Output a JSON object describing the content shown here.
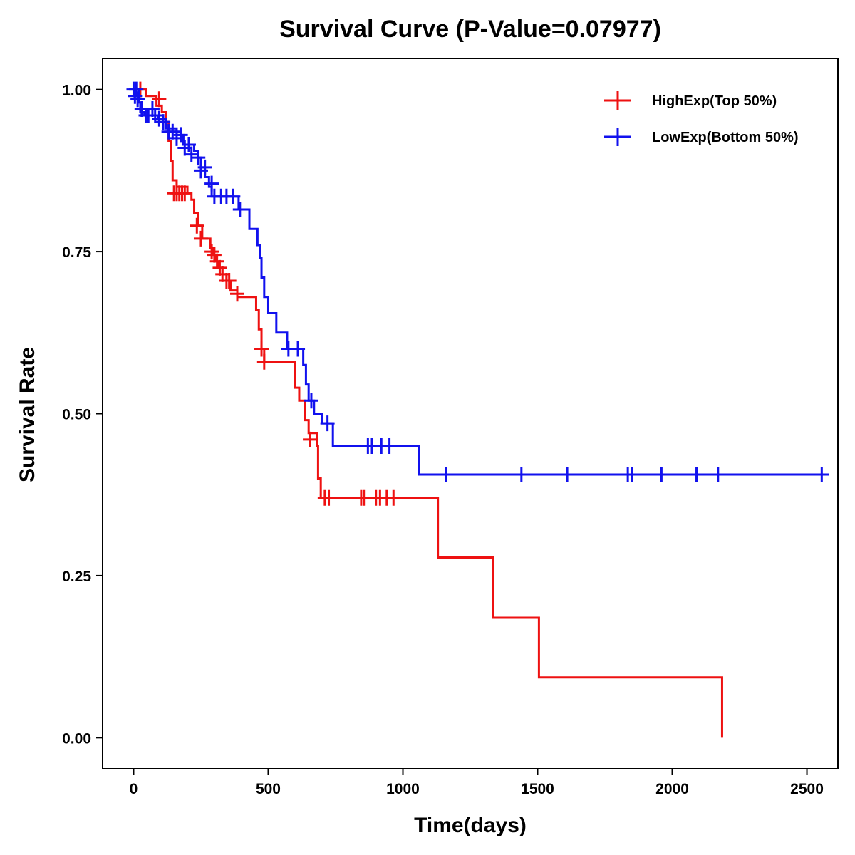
{
  "chart_data": {
    "type": "line",
    "subtype": "kaplan-meier-step",
    "title": "Survival Curve (P-Value=0.07977)",
    "xlabel": "Time(days)",
    "ylabel": "Survival Rate",
    "xlim": [
      -115,
      2615
    ],
    "ylim": [
      -0.048,
      1.048
    ],
    "xticks": [
      0,
      500,
      1000,
      1500,
      2000,
      2500
    ],
    "xtick_labels": [
      "0",
      "500",
      "1000",
      "1500",
      "2000",
      "2500"
    ],
    "yticks": [
      0.0,
      0.25,
      0.5,
      0.75,
      1.0
    ],
    "ytick_labels": [
      "0.00",
      "0.25",
      "0.50",
      "0.75",
      "1.00"
    ],
    "grid": false,
    "legend_position": "top-right",
    "series": [
      {
        "name": "HighExp(Top 50%)",
        "color": "#ee1111",
        "steps": [
          [
            0,
            1.0
          ],
          [
            45,
            0.99
          ],
          [
            85,
            0.975
          ],
          [
            105,
            0.965
          ],
          [
            120,
            0.95
          ],
          [
            130,
            0.92
          ],
          [
            140,
            0.89
          ],
          [
            145,
            0.86
          ],
          [
            160,
            0.85
          ],
          [
            200,
            0.84
          ],
          [
            215,
            0.83
          ],
          [
            225,
            0.81
          ],
          [
            240,
            0.79
          ],
          [
            255,
            0.77
          ],
          [
            285,
            0.755
          ],
          [
            295,
            0.745
          ],
          [
            305,
            0.735
          ],
          [
            315,
            0.725
          ],
          [
            330,
            0.715
          ],
          [
            345,
            0.705
          ],
          [
            360,
            0.69
          ],
          [
            385,
            0.68
          ],
          [
            455,
            0.66
          ],
          [
            465,
            0.63
          ],
          [
            475,
            0.6
          ],
          [
            485,
            0.58
          ],
          [
            600,
            0.54
          ],
          [
            615,
            0.52
          ],
          [
            635,
            0.49
          ],
          [
            650,
            0.47
          ],
          [
            680,
            0.45
          ],
          [
            685,
            0.4
          ],
          [
            695,
            0.37
          ],
          [
            1130,
            0.278
          ],
          [
            1335,
            0.185
          ],
          [
            1505,
            0.093
          ],
          [
            2185,
            0.0
          ]
        ],
        "end": 2185,
        "censored": [
          [
            25,
            1.0
          ],
          [
            95,
            0.985
          ],
          [
            150,
            0.84
          ],
          [
            160,
            0.84
          ],
          [
            170,
            0.84
          ],
          [
            180,
            0.84
          ],
          [
            190,
            0.84
          ],
          [
            235,
            0.79
          ],
          [
            250,
            0.77
          ],
          [
            290,
            0.75
          ],
          [
            300,
            0.745
          ],
          [
            310,
            0.735
          ],
          [
            320,
            0.725
          ],
          [
            330,
            0.715
          ],
          [
            345,
            0.705
          ],
          [
            355,
            0.705
          ],
          [
            385,
            0.685
          ],
          [
            475,
            0.6
          ],
          [
            485,
            0.58
          ],
          [
            655,
            0.46
          ],
          [
            710,
            0.37
          ],
          [
            725,
            0.37
          ],
          [
            845,
            0.37
          ],
          [
            855,
            0.37
          ],
          [
            900,
            0.37
          ],
          [
            915,
            0.37
          ],
          [
            940,
            0.37
          ],
          [
            965,
            0.37
          ]
        ]
      },
      {
        "name": "LowExp(Bottom 50%)",
        "color": "#1111ee",
        "steps": [
          [
            0,
            1.0
          ],
          [
            20,
            0.98
          ],
          [
            25,
            0.965
          ],
          [
            40,
            0.96
          ],
          [
            90,
            0.955
          ],
          [
            120,
            0.94
          ],
          [
            160,
            0.93
          ],
          [
            185,
            0.915
          ],
          [
            225,
            0.905
          ],
          [
            240,
            0.895
          ],
          [
            250,
            0.88
          ],
          [
            265,
            0.865
          ],
          [
            280,
            0.85
          ],
          [
            290,
            0.835
          ],
          [
            390,
            0.815
          ],
          [
            430,
            0.785
          ],
          [
            460,
            0.76
          ],
          [
            470,
            0.74
          ],
          [
            475,
            0.71
          ],
          [
            485,
            0.68
          ],
          [
            500,
            0.655
          ],
          [
            530,
            0.625
          ],
          [
            570,
            0.6
          ],
          [
            630,
            0.575
          ],
          [
            640,
            0.545
          ],
          [
            650,
            0.52
          ],
          [
            670,
            0.5
          ],
          [
            700,
            0.485
          ],
          [
            740,
            0.45
          ],
          [
            1060,
            0.406
          ]
        ],
        "end": 2555,
        "censored": [
          [
            0,
            1.0
          ],
          [
            5,
            0.99
          ],
          [
            10,
            1.0
          ],
          [
            15,
            0.985
          ],
          [
            30,
            0.97
          ],
          [
            45,
            0.96
          ],
          [
            55,
            0.96
          ],
          [
            70,
            0.97
          ],
          [
            80,
            0.96
          ],
          [
            95,
            0.955
          ],
          [
            110,
            0.95
          ],
          [
            130,
            0.935
          ],
          [
            145,
            0.935
          ],
          [
            160,
            0.925
          ],
          [
            175,
            0.93
          ],
          [
            190,
            0.91
          ],
          [
            205,
            0.915
          ],
          [
            215,
            0.9
          ],
          [
            240,
            0.895
          ],
          [
            250,
            0.875
          ],
          [
            265,
            0.88
          ],
          [
            290,
            0.855
          ],
          [
            300,
            0.835
          ],
          [
            325,
            0.835
          ],
          [
            345,
            0.835
          ],
          [
            370,
            0.835
          ],
          [
            395,
            0.815
          ],
          [
            575,
            0.6
          ],
          [
            610,
            0.6
          ],
          [
            660,
            0.52
          ],
          [
            720,
            0.485
          ],
          [
            870,
            0.45
          ],
          [
            885,
            0.45
          ],
          [
            920,
            0.45
          ],
          [
            950,
            0.45
          ],
          [
            1160,
            0.406
          ],
          [
            1440,
            0.406
          ],
          [
            1610,
            0.406
          ],
          [
            1835,
            0.406
          ],
          [
            1850,
            0.406
          ],
          [
            1960,
            0.406
          ],
          [
            2090,
            0.406
          ],
          [
            2170,
            0.406
          ],
          [
            2555,
            0.406
          ]
        ]
      }
    ]
  }
}
